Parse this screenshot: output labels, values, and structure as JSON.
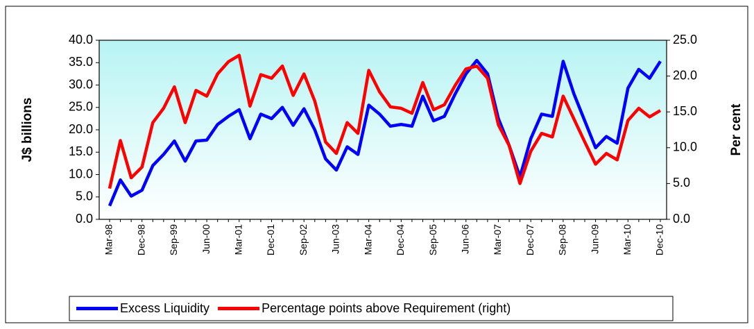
{
  "chart_data": {
    "type": "line",
    "categories": [
      "Mar-98",
      null,
      null,
      "Dec-98",
      null,
      null,
      "Sep-99",
      null,
      null,
      "Jun-00",
      null,
      null,
      "Mar-01",
      null,
      null,
      "Dec-01",
      null,
      null,
      "Sep-02",
      null,
      null,
      "Jun-03",
      null,
      null,
      "Mar-04",
      null,
      null,
      "Dec-04",
      null,
      null,
      "Sep-05",
      null,
      null,
      "Jun-06",
      null,
      null,
      "Mar-07",
      null,
      null,
      "Dec-07",
      null,
      null,
      "Sep-08",
      null,
      null,
      "Jun-09",
      null,
      null,
      "Mar-10",
      null,
      null,
      "Dec-10"
    ],
    "series": [
      {
        "name": "Excess Liquidity",
        "color": "#0000ff",
        "values": [
          3,
          8.8,
          5.2,
          6.5,
          12,
          14.5,
          17.5,
          13,
          17.5,
          17.7,
          21.2,
          23,
          24.5,
          18,
          23.5,
          22.5,
          25,
          21,
          24.7,
          20,
          13.5,
          11,
          16.2,
          14.5,
          25.5,
          23.5,
          20.8,
          21.2,
          20.8,
          27.5,
          22,
          23,
          28,
          32.5,
          35.5,
          32.5,
          22.5,
          16.5,
          9.5,
          18,
          23.5,
          23,
          35.3,
          28,
          22,
          16,
          18.5,
          17,
          29.3,
          33.5,
          31.5,
          35.3
        ]
      },
      {
        "name": "Percentage points above Requirement (right)",
        "color": "#ff0000",
        "axis": "y2",
        "values": [
          4.3,
          11,
          5.8,
          7.3,
          13.5,
          15.5,
          18.5,
          13.5,
          18,
          17.2,
          20.3,
          22,
          22.9,
          15.8,
          20.2,
          19.7,
          21.4,
          17.3,
          20.3,
          16.5,
          10.8,
          9.2,
          13.5,
          12,
          20.8,
          17.8,
          15.7,
          15.5,
          14.8,
          19.1,
          15.3,
          16,
          18.7,
          21,
          21.4,
          19.7,
          13.2,
          10.3,
          5,
          9.5,
          12,
          11.5,
          17.2,
          14,
          10.8,
          7.7,
          9.2,
          8.3,
          13.8,
          15.5,
          14.3,
          15.2
        ]
      }
    ],
    "ylabel": "J$ billions",
    "y2label": "Per cent",
    "ylim": [
      0,
      40
    ],
    "yticks": [
      {
        "value": 0,
        "label": "0.0"
      },
      {
        "value": 5,
        "label": "5.0"
      },
      {
        "value": 10,
        "label": "10.0"
      },
      {
        "value": 15,
        "label": "15.0"
      },
      {
        "value": 20,
        "label": "20.0"
      },
      {
        "value": 25,
        "label": "25.0"
      },
      {
        "value": 30,
        "label": "30.0"
      },
      {
        "value": 35,
        "label": "35.0"
      },
      {
        "value": 40,
        "label": "40.0"
      }
    ],
    "y2lim": [
      0,
      25
    ],
    "y2ticks": [
      {
        "value": 0,
        "label": "0.0"
      },
      {
        "value": 5,
        "label": "5.0"
      },
      {
        "value": 10,
        "label": "10.0"
      },
      {
        "value": 15,
        "label": "15.0"
      },
      {
        "value": 20,
        "label": "20.0"
      },
      {
        "value": 25,
        "label": "25.0"
      }
    ],
    "legend": "bottom"
  }
}
